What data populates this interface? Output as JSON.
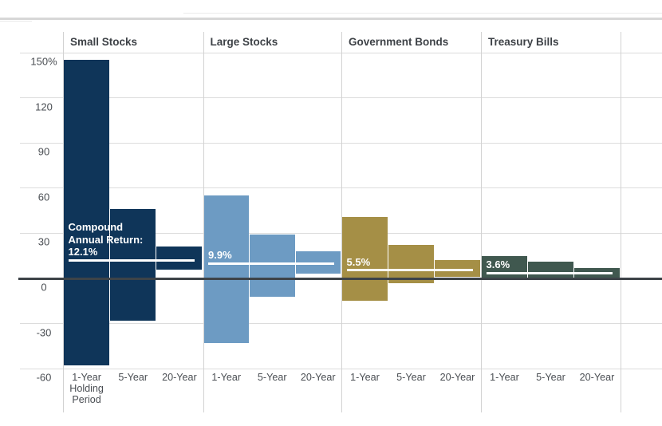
{
  "chart_data": {
    "type": "bar",
    "subtype": "floating-range-bars",
    "description": "Maximum and minimum annualized holding-period returns (percent) with compound annual return lines",
    "unit": "percent",
    "y_axis": {
      "tick_labels": [
        "150%",
        "120",
        "90",
        "60",
        "30",
        "0",
        "-30",
        "-60"
      ],
      "tick_values": [
        150,
        120,
        90,
        60,
        30,
        0,
        -30,
        -60
      ],
      "ylim": [
        -60,
        150
      ],
      "gridlines": true
    },
    "annotation_line_color": "#ffffff",
    "zero_line_color": "#3d4348",
    "gridline_color": "#dcdcdc",
    "groups": [
      {
        "label": "Small Stocks",
        "bar_color": "#0f3559",
        "compound_annual_return_pct": 12.1,
        "annotation_lines": [
          "Compound",
          "Annual Return:",
          "12.1%"
        ],
        "bars": [
          {
            "x_label_lines": [
              "1-Year",
              "Holding",
              "Period"
            ],
            "max": 145,
            "min": -58
          },
          {
            "x_label_lines": [
              "5-Year"
            ],
            "max": 46,
            "min": -28
          },
          {
            "x_label_lines": [
              "20-Year"
            ],
            "max": 21,
            "min": 6
          }
        ]
      },
      {
        "label": "Large Stocks",
        "bar_color": "#6d9bc3",
        "compound_annual_return_pct": 9.9,
        "annotation_lines": [
          "9.9%"
        ],
        "bars": [
          {
            "x_label_lines": [
              "1-Year"
            ],
            "max": 55,
            "min": -43
          },
          {
            "x_label_lines": [
              "5-Year"
            ],
            "max": 29,
            "min": -12
          },
          {
            "x_label_lines": [
              "20-Year"
            ],
            "max": 18,
            "min": 3
          }
        ]
      },
      {
        "label": "Government Bonds",
        "bar_color": "#a58f46",
        "compound_annual_return_pct": 5.5,
        "annotation_lines": [
          "5.5%"
        ],
        "bars": [
          {
            "x_label_lines": [
              "1-Year"
            ],
            "max": 41,
            "min": -15
          },
          {
            "x_label_lines": [
              "5-Year"
            ],
            "max": 22,
            "min": -3
          },
          {
            "x_label_lines": [
              "20-Year"
            ],
            "max": 12,
            "min": 1
          }
        ]
      },
      {
        "label": "Treasury Bills",
        "bar_color": "#40584f",
        "compound_annual_return_pct": 3.6,
        "annotation_lines": [
          "3.6%"
        ],
        "bars": [
          {
            "x_label_lines": [
              "1-Year"
            ],
            "max": 15,
            "min": 0
          },
          {
            "x_label_lines": [
              "5-Year"
            ],
            "max": 11,
            "min": 0
          },
          {
            "x_label_lines": [
              "20-Year"
            ],
            "max": 7,
            "min": 0
          }
        ]
      }
    ]
  }
}
